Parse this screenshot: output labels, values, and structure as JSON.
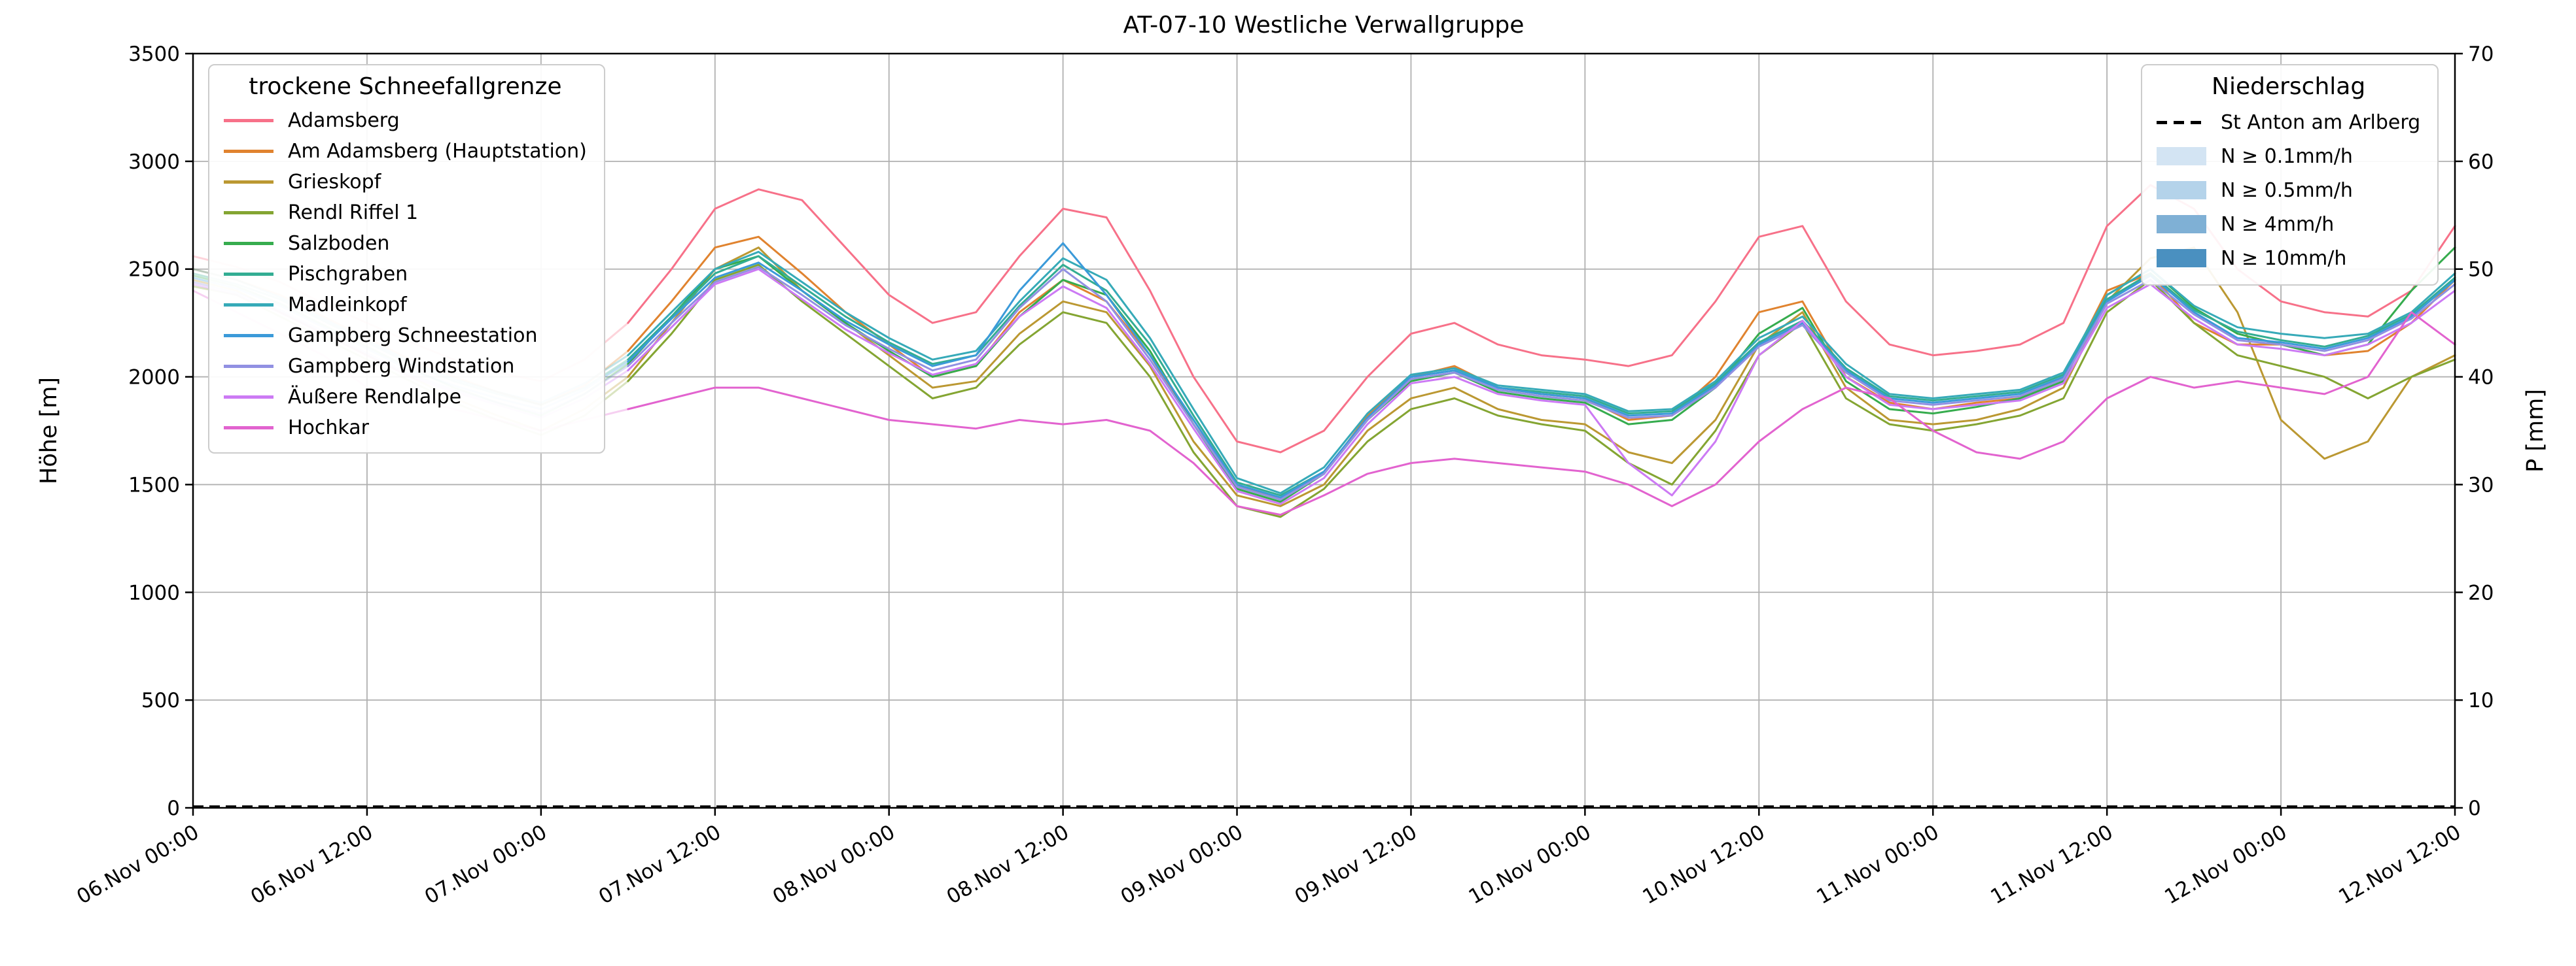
{
  "title": "AT-07-10 Westliche Verwallgruppe",
  "axes": {
    "y_left_label": "Höhe [m]",
    "y_right_label": "P [mm]",
    "y_left_ticks": [
      0,
      500,
      1000,
      1500,
      2000,
      2500,
      3000,
      3500
    ],
    "y_right_ticks": [
      0,
      10,
      20,
      30,
      40,
      50,
      60,
      70
    ],
    "x_tick_labels": [
      "06.Nov 00:00",
      "06.Nov 12:00",
      "07.Nov 00:00",
      "07.Nov 12:00",
      "08.Nov 00:00",
      "08.Nov 12:00",
      "09.Nov 00:00",
      "09.Nov 12:00",
      "10.Nov 00:00",
      "10.Nov 12:00",
      "11.Nov 00:00",
      "11.Nov 12:00",
      "12.Nov 00:00",
      "12.Nov 12:00"
    ],
    "x_tick_step_hours": 12
  },
  "legend_left": {
    "title": "trockene Schneefallgrenze",
    "items": [
      {
        "label": "Adamsberg",
        "color": "#f77189"
      },
      {
        "label": "Am Adamsberg (Hauptstation)",
        "color": "#e0832f"
      },
      {
        "label": "Grieskopf",
        "color": "#bb9832"
      },
      {
        "label": "Rendl Riffel 1",
        "color": "#84a532"
      },
      {
        "label": "Salzboden",
        "color": "#36ac4e"
      },
      {
        "label": "Pischgraben",
        "color": "#33ad93"
      },
      {
        "label": "Madleinkopf",
        "color": "#36aab8"
      },
      {
        "label": "Gampberg Schneestation",
        "color": "#3b9ad9"
      },
      {
        "label": "Gampberg Windstation",
        "color": "#9190e2"
      },
      {
        "label": "Äußere Rendlalpe",
        "color": "#cc7af4"
      },
      {
        "label": "Hochkar",
        "color": "#e263cf"
      }
    ]
  },
  "legend_right": {
    "title": "Niederschlag",
    "items": [
      {
        "label": "St Anton am Arlberg",
        "type": "dashed-line",
        "color": "#000000"
      },
      {
        "label": "N ≥ 0.1mm/h",
        "type": "patch",
        "color": "#d3e4f3"
      },
      {
        "label": "N ≥ 0.5mm/h",
        "type": "patch",
        "color": "#b4d3ea"
      },
      {
        "label": "N ≥ 4mm/h",
        "type": "patch",
        "color": "#7fb0d5"
      },
      {
        "label": "N ≥ 10mm/h",
        "type": "patch",
        "color": "#4a90c0"
      }
    ]
  },
  "chart_data": {
    "type": "line",
    "x_unit": "hours since 06.Nov 00:00",
    "x_axis_range_hours": [
      0,
      156
    ],
    "ylim_left_m": [
      0,
      3500
    ],
    "ylim_right_mm": [
      0,
      70
    ],
    "grid": true,
    "fade_split_hour": 30,
    "x": [
      0,
      3,
      6,
      9,
      12,
      15,
      18,
      21,
      24,
      27,
      30,
      33,
      36,
      39,
      42,
      45,
      48,
      51,
      54,
      57,
      60,
      63,
      66,
      69,
      72,
      75,
      78,
      81,
      84,
      87,
      90,
      93,
      96,
      99,
      102,
      105,
      108,
      111,
      114,
      117,
      120,
      123,
      126,
      129,
      132,
      135,
      138,
      141,
      144,
      147,
      150,
      153,
      156
    ],
    "series": [
      {
        "name": "Adamsberg",
        "color": "#f77189",
        "values": [
          2560,
          2510,
          2440,
          2340,
          2250,
          2160,
          2080,
          2020,
          1980,
          2080,
          2250,
          2500,
          2780,
          2870,
          2820,
          2600,
          2380,
          2250,
          2300,
          2560,
          2780,
          2740,
          2400,
          2000,
          1700,
          1650,
          1750,
          2000,
          2200,
          2250,
          2150,
          2100,
          2080,
          2050,
          2100,
          2350,
          2650,
          2700,
          2350,
          2150,
          2100,
          2120,
          2150,
          2250,
          2700,
          2890,
          2780,
          2500,
          2350,
          2300,
          2280,
          2400,
          2700
        ]
      },
      {
        "name": "Am Adamsberg (Hauptstation)",
        "color": "#e0832f",
        "values": [
          2500,
          2450,
          2380,
          2280,
          2180,
          2080,
          2000,
          1930,
          1870,
          1960,
          2120,
          2350,
          2600,
          2650,
          2480,
          2300,
          2150,
          2000,
          2050,
          2300,
          2450,
          2350,
          2100,
          1780,
          1500,
          1430,
          1550,
          1820,
          2000,
          2050,
          1950,
          1920,
          1900,
          1800,
          1820,
          2000,
          2300,
          2350,
          2000,
          1880,
          1850,
          1880,
          1900,
          2000,
          2400,
          2480,
          2250,
          2150,
          2150,
          2100,
          2120,
          2250,
          2450
        ]
      },
      {
        "name": "Grieskopf",
        "color": "#bb9832",
        "values": [
          2450,
          2400,
          2300,
          2200,
          2100,
          2000,
          1900,
          1820,
          1750,
          1850,
          2000,
          2250,
          2500,
          2600,
          2400,
          2250,
          2100,
          1950,
          1980,
          2200,
          2350,
          2300,
          2050,
          1700,
          1450,
          1400,
          1500,
          1750,
          1900,
          1950,
          1850,
          1800,
          1780,
          1650,
          1600,
          1800,
          2150,
          2300,
          1950,
          1800,
          1780,
          1800,
          1850,
          1950,
          2350,
          2550,
          2600,
          2300,
          1800,
          1620,
          1700,
          2000,
          2100
        ]
      },
      {
        "name": "Rendl Riffel 1",
        "color": "#84a532",
        "values": [
          2420,
          2380,
          2280,
          2180,
          2080,
          1980,
          1880,
          1800,
          1730,
          1820,
          1980,
          2200,
          2450,
          2520,
          2350,
          2200,
          2050,
          1900,
          1950,
          2150,
          2300,
          2250,
          2000,
          1650,
          1400,
          1350,
          1480,
          1700,
          1850,
          1900,
          1820,
          1780,
          1750,
          1600,
          1500,
          1750,
          2100,
          2250,
          1900,
          1780,
          1750,
          1780,
          1820,
          1900,
          2300,
          2450,
          2250,
          2100,
          2050,
          2000,
          1900,
          2000,
          2080
        ]
      },
      {
        "name": "Salzboden",
        "color": "#36ac4e",
        "values": [
          2470,
          2420,
          2340,
          2240,
          2140,
          2040,
          1950,
          1880,
          1820,
          1920,
          2060,
          2280,
          2500,
          2560,
          2400,
          2250,
          2120,
          2000,
          2050,
          2280,
          2450,
          2380,
          2120,
          1780,
          1480,
          1420,
          1550,
          1800,
          1980,
          2020,
          1930,
          1900,
          1880,
          1780,
          1800,
          1950,
          2200,
          2320,
          1980,
          1850,
          1830,
          1860,
          1900,
          1980,
          2380,
          2500,
          2320,
          2200,
          2150,
          2100,
          2150,
          2400,
          2600
        ]
      },
      {
        "name": "Pischgraben",
        "color": "#33ad93",
        "values": [
          2480,
          2430,
          2360,
          2260,
          2160,
          2060,
          1980,
          1920,
          1870,
          1950,
          2080,
          2280,
          2480,
          2560,
          2420,
          2280,
          2160,
          2060,
          2100,
          2330,
          2520,
          2400,
          2150,
          1820,
          1510,
          1450,
          1560,
          1810,
          2000,
          2030,
          1950,
          1930,
          1910,
          1830,
          1840,
          1970,
          2160,
          2260,
          2040,
          1910,
          1890,
          1910,
          1930,
          2010,
          2360,
          2480,
          2310,
          2210,
          2170,
          2140,
          2190,
          2290,
          2460
        ]
      },
      {
        "name": "Madleinkopf",
        "color": "#36aab8",
        "values": [
          2500,
          2450,
          2370,
          2270,
          2170,
          2070,
          1990,
          1930,
          1880,
          1970,
          2100,
          2300,
          2500,
          2580,
          2440,
          2300,
          2180,
          2080,
          2120,
          2350,
          2550,
          2450,
          2180,
          1850,
          1530,
          1460,
          1580,
          1830,
          2010,
          2040,
          1960,
          1940,
          1920,
          1840,
          1850,
          1980,
          2180,
          2280,
          2060,
          1920,
          1900,
          1920,
          1940,
          2020,
          2380,
          2500,
          2330,
          2230,
          2200,
          2180,
          2200,
          2300,
          2480
        ]
      },
      {
        "name": "Gampberg Schneestation",
        "color": "#3b9ad9",
        "values": [
          2460,
          2410,
          2330,
          2230,
          2130,
          2030,
          1960,
          1900,
          1850,
          1940,
          2070,
          2270,
          2460,
          2530,
          2400,
          2260,
          2150,
          2050,
          2100,
          2400,
          2620,
          2380,
          2100,
          1800,
          1500,
          1440,
          1560,
          1810,
          2000,
          2030,
          1950,
          1920,
          1900,
          1820,
          1830,
          1960,
          2150,
          2250,
          2030,
          1900,
          1880,
          1900,
          1920,
          2000,
          2350,
          2470,
          2300,
          2180,
          2160,
          2130,
          2180,
          2280,
          2450
        ]
      },
      {
        "name": "Gampberg Windstation",
        "color": "#9190e2",
        "values": [
          2440,
          2390,
          2310,
          2210,
          2110,
          2010,
          1940,
          1880,
          1830,
          1920,
          2050,
          2250,
          2440,
          2510,
          2380,
          2240,
          2130,
          2030,
          2080,
          2320,
          2500,
          2350,
          2080,
          1780,
          1490,
          1430,
          1550,
          1800,
          1990,
          2020,
          1940,
          1910,
          1890,
          1810,
          1820,
          1950,
          2140,
          2240,
          2020,
          1890,
          1870,
          1890,
          1910,
          1990,
          2340,
          2450,
          2290,
          2170,
          2150,
          2120,
          2170,
          2270,
          2430
        ]
      },
      {
        "name": "Äußere Rendlalpe",
        "color": "#cc7af4",
        "values": [
          2430,
          2380,
          2300,
          2200,
          2100,
          2000,
          1930,
          1870,
          1810,
          1900,
          2030,
          2230,
          2430,
          2500,
          2360,
          2220,
          2110,
          2010,
          2060,
          2280,
          2420,
          2320,
          2060,
          1760,
          1470,
          1410,
          1530,
          1780,
          1970,
          2000,
          1920,
          1890,
          1870,
          1600,
          1450,
          1700,
          2100,
          2260,
          2000,
          1870,
          1850,
          1870,
          1890,
          1970,
          2320,
          2430,
          2270,
          2150,
          2130,
          2100,
          2150,
          2250,
          2400
        ]
      },
      {
        "name": "Hochkar",
        "color": "#e263cf",
        "values": [
          2400,
          2300,
          2200,
          2100,
          1950,
          1900,
          1850,
          1800,
          1750,
          1800,
          1850,
          1900,
          1950,
          1950,
          1900,
          1850,
          1800,
          1780,
          1760,
          1800,
          1780,
          1800,
          1750,
          1600,
          1400,
          1360,
          1450,
          1550,
          1600,
          1620,
          1600,
          1580,
          1560,
          1500,
          1400,
          1500,
          1700,
          1850,
          1950,
          1900,
          1750,
          1650,
          1620,
          1700,
          1900,
          2000,
          1950,
          1980,
          1950,
          1920,
          2000,
          2300,
          2150
        ]
      }
    ],
    "precipitation_line": {
      "name": "St Anton am Arlberg",
      "axis": "right",
      "style": "dashed",
      "color": "#000000",
      "constant_value_mm": 0
    }
  }
}
